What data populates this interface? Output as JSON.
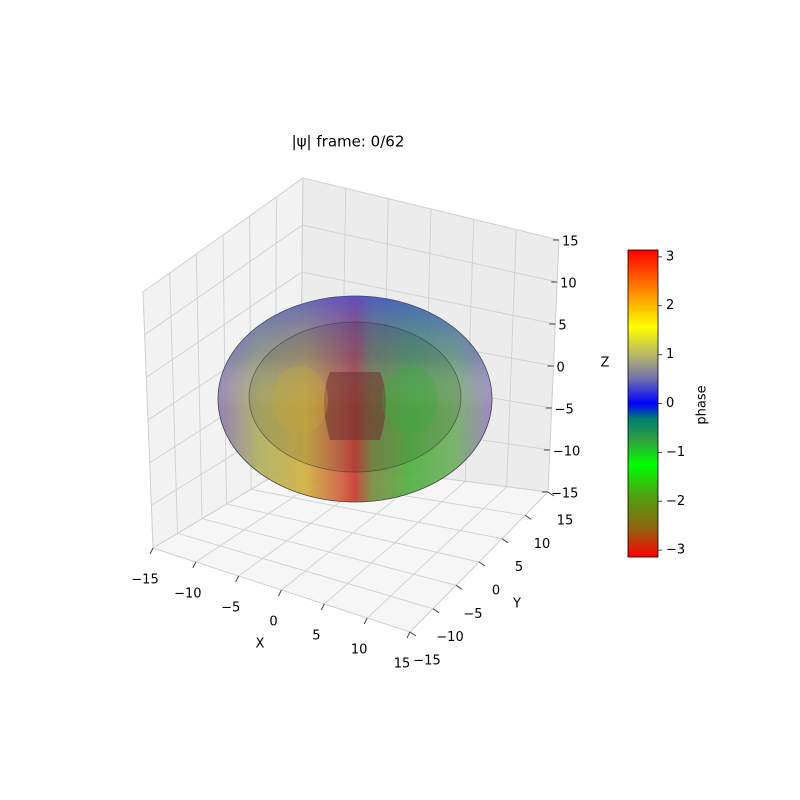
{
  "chart_data": {
    "type": "surface",
    "title": "|ψ| frame: 0/62",
    "xlabel": "X",
    "ylabel": "Y",
    "zlabel": "Z",
    "xlim": [
      -15,
      15
    ],
    "ylim": [
      -15,
      15
    ],
    "zlim": [
      -15,
      15
    ],
    "xticks": [
      {
        "value": -15,
        "label": "−15"
      },
      {
        "value": -10,
        "label": "−10"
      },
      {
        "value": -5,
        "label": "−5"
      },
      0,
      5,
      10,
      15
    ],
    "yticks": [
      {
        "value": -15,
        "label": "−15"
      },
      {
        "value": -10,
        "label": "−10"
      },
      {
        "value": -5,
        "label": "−5"
      },
      0,
      5,
      10,
      15
    ],
    "zticks": [
      {
        "value": -15,
        "label": "−15"
      },
      {
        "value": -10,
        "label": "−10"
      },
      {
        "value": -5,
        "label": "−5"
      },
      0,
      5,
      10,
      15
    ],
    "grid": true,
    "colorbar": {
      "label": "phase",
      "lim": [
        -3.14,
        3.14
      ],
      "ticks": [
        {
          "value": -3,
          "label": "−3"
        },
        {
          "value": -2,
          "label": "−2"
        },
        {
          "value": -1,
          "label": "−1"
        },
        0,
        1,
        2,
        3
      ]
    }
  }
}
